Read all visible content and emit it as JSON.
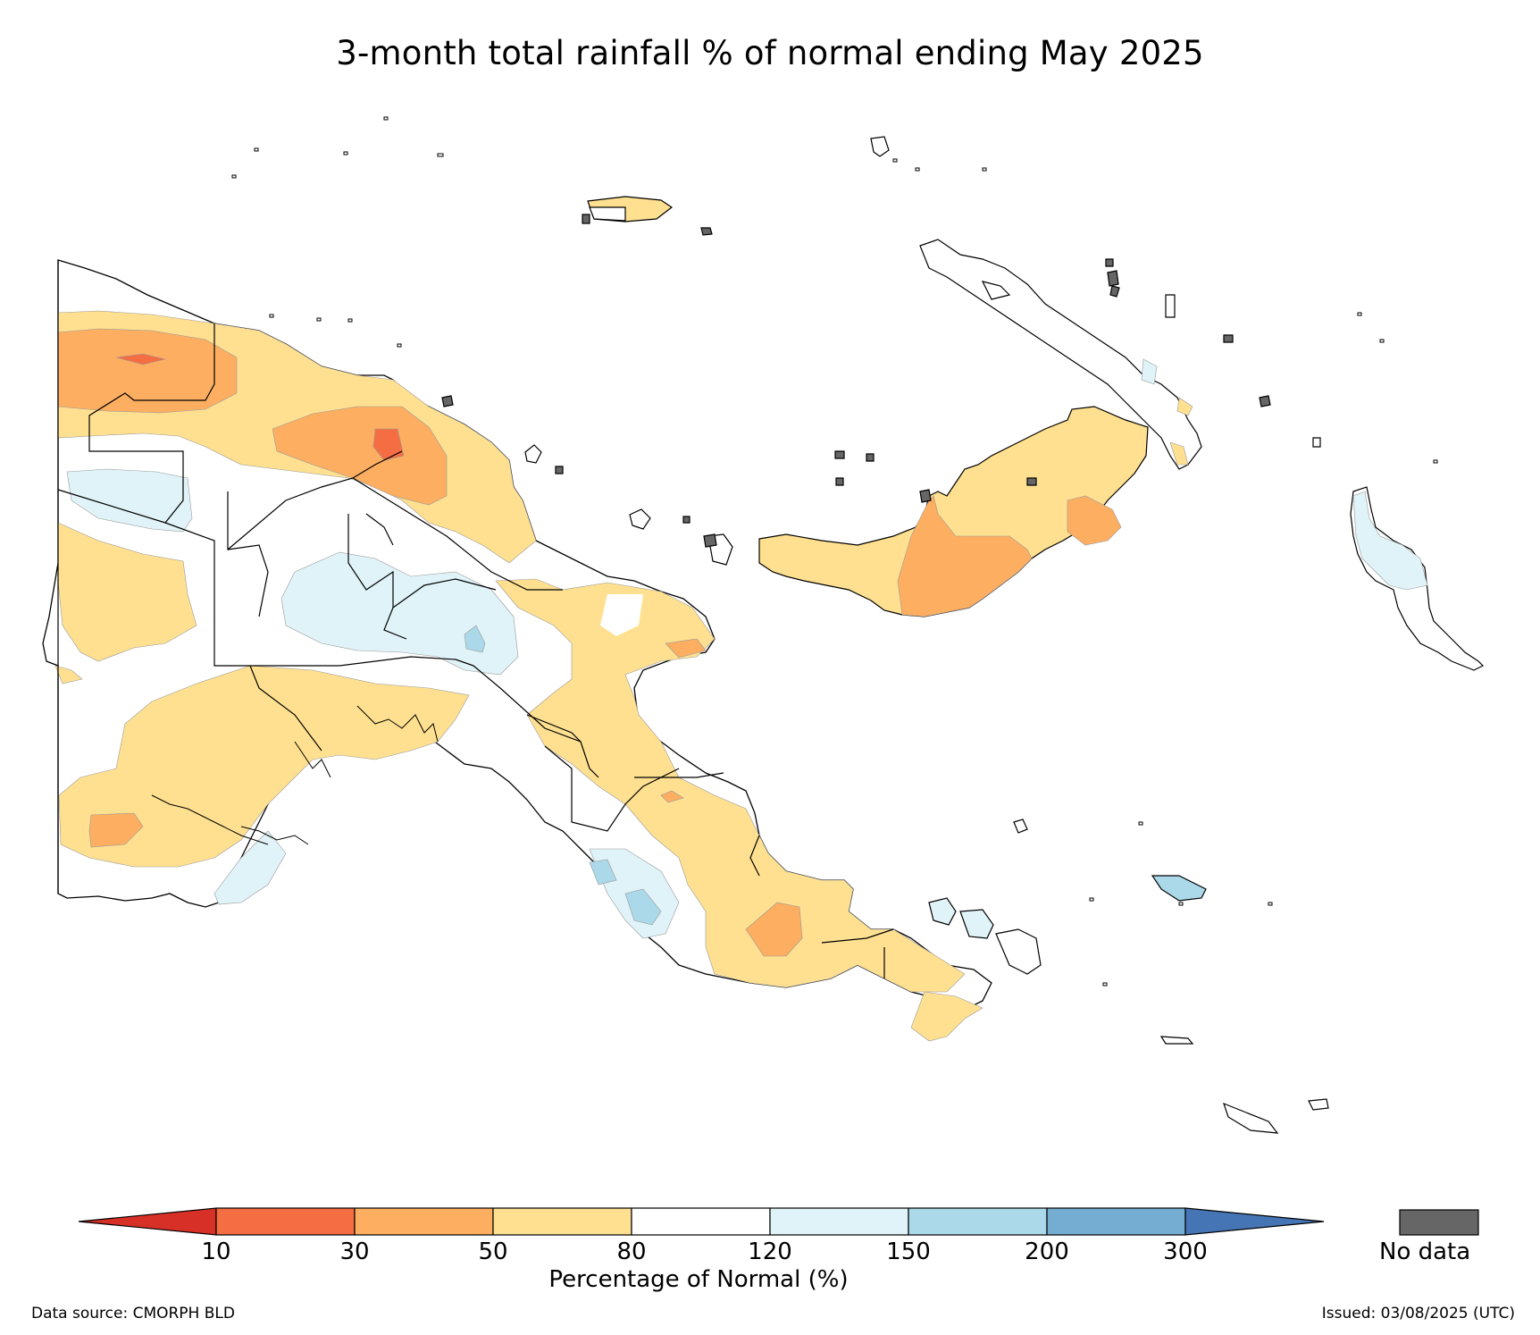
{
  "title": "3-month total rainfall % of normal ending May 2025",
  "legend": {
    "title": "Percentage of Normal (%)",
    "ticks": [
      "10",
      "30",
      "50",
      "80",
      "120",
      "150",
      "200",
      "300"
    ],
    "bins": [
      {
        "range": "<10",
        "color": "#d73027"
      },
      {
        "range": "10-30",
        "color": "#f46d43"
      },
      {
        "range": "30-50",
        "color": "#fdae61"
      },
      {
        "range": "50-80",
        "color": "#fee090"
      },
      {
        "range": "80-120",
        "color": "#ffffff"
      },
      {
        "range": "120-150",
        "color": "#e0f3f8"
      },
      {
        "range": "150-200",
        "color": "#abd9e9"
      },
      {
        "range": "200-300",
        "color": "#74add1"
      },
      {
        "range": ">300",
        "color": "#4575b4"
      }
    ],
    "no_data_label": "No data",
    "no_data_color": "#666666"
  },
  "footer": {
    "source": "Data source: CMORPH BLD",
    "issued": "Issued: 03/08/2025 (UTC)"
  }
}
